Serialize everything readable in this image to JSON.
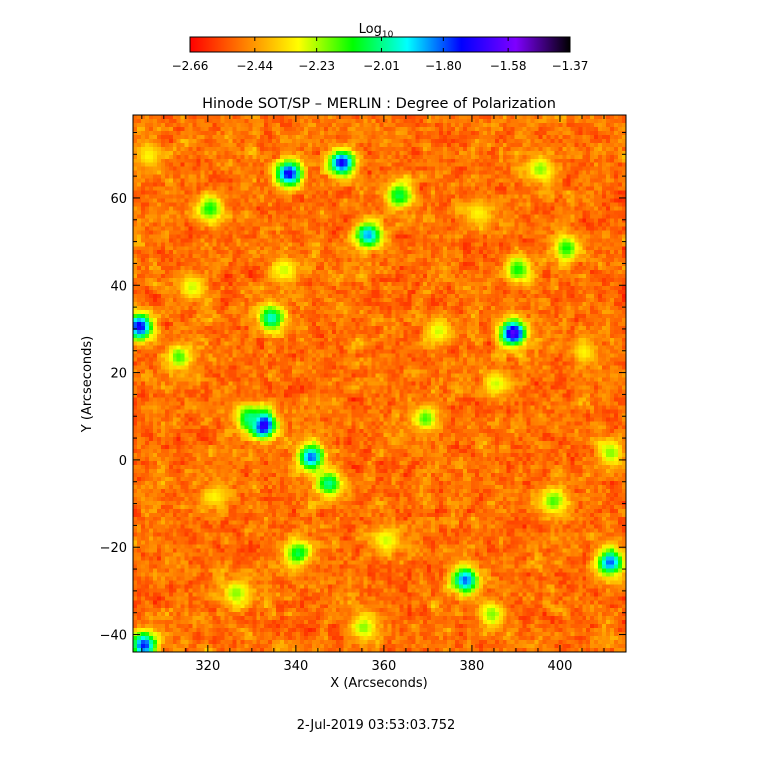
{
  "chart_data": {
    "type": "heatmap",
    "title": "Hinode SOT/SP – MERLIN : Degree of Polarization",
    "xlabel": "X (Arcseconds)",
    "ylabel": "Y (Arcseconds)",
    "xlim": [
      303,
      415
    ],
    "ylim": [
      -44,
      79
    ],
    "xticks": [
      320,
      340,
      360,
      380,
      400
    ],
    "yticks": [
      -40,
      -20,
      0,
      20,
      40,
      60
    ],
    "xticklabels": [
      "320",
      "340",
      "360",
      "380",
      "400"
    ],
    "yticklabels": [
      "−40",
      "−20",
      "0",
      "20",
      "40",
      "60"
    ],
    "colorbar": {
      "label": "Log",
      "label_sub": "10",
      "range": [
        -2.66,
        -1.37
      ],
      "ticks": [
        -2.66,
        -2.44,
        -2.23,
        -2.01,
        -1.8,
        -1.58,
        -1.37
      ],
      "ticklabels": [
        "−2.66",
        "−2.44",
        "−2.23",
        "−2.01",
        "−1.80",
        "−1.58",
        "−1.37"
      ],
      "colormap": [
        "#ff0000",
        "#ff7f00",
        "#ffff00",
        "#00ff00",
        "#00ffff",
        "#0000ff",
        "#7f00ff",
        "#000000"
      ]
    },
    "background_level": -2.5,
    "features": [
      {
        "x": 332,
        "y": 8.5,
        "value": -1.55
      },
      {
        "x": 389,
        "y": 29.5,
        "value": -1.6
      },
      {
        "x": 350,
        "y": 68.5,
        "value": -1.7
      },
      {
        "x": 338,
        "y": 66,
        "value": -1.7
      },
      {
        "x": 304,
        "y": 31,
        "value": -1.7
      },
      {
        "x": 343,
        "y": 1,
        "value": -1.8
      },
      {
        "x": 378,
        "y": -27,
        "value": -1.8
      },
      {
        "x": 356,
        "y": 52,
        "value": -1.85
      },
      {
        "x": 305,
        "y": -42,
        "value": -1.75
      },
      {
        "x": 411,
        "y": -23,
        "value": -1.8
      },
      {
        "x": 334,
        "y": 33,
        "value": -1.95
      },
      {
        "x": 329,
        "y": 10,
        "value": -2.0
      },
      {
        "x": 363,
        "y": 61,
        "value": -2.05
      },
      {
        "x": 340,
        "y": -21,
        "value": -2.05
      },
      {
        "x": 347,
        "y": -5,
        "value": -2.0
      },
      {
        "x": 390,
        "y": 44,
        "value": -2.1
      },
      {
        "x": 320,
        "y": 58,
        "value": -2.1
      },
      {
        "x": 401,
        "y": 49,
        "value": -2.1
      },
      {
        "x": 313,
        "y": 24,
        "value": -2.15
      },
      {
        "x": 398,
        "y": -9,
        "value": -2.15
      },
      {
        "x": 369,
        "y": 10,
        "value": -2.15
      },
      {
        "x": 326,
        "y": -30,
        "value": -2.2
      },
      {
        "x": 355,
        "y": -38,
        "value": -2.2
      },
      {
        "x": 384,
        "y": -35,
        "value": -2.2
      },
      {
        "x": 395,
        "y": 67,
        "value": -2.2
      },
      {
        "x": 411,
        "y": 2,
        "value": -2.2
      },
      {
        "x": 316,
        "y": 40,
        "value": -2.25
      },
      {
        "x": 372,
        "y": 30,
        "value": -2.25
      },
      {
        "x": 385,
        "y": 18,
        "value": -2.25
      },
      {
        "x": 337,
        "y": 44,
        "value": -2.25
      },
      {
        "x": 360,
        "y": -18,
        "value": -2.25
      },
      {
        "x": 306,
        "y": 70,
        "value": -2.3
      },
      {
        "x": 405,
        "y": 25,
        "value": -2.3
      },
      {
        "x": 321,
        "y": -8,
        "value": -2.3
      },
      {
        "x": 381,
        "y": 57,
        "value": -2.3
      }
    ]
  },
  "timestamp": "2-Jul-2019 03:53:03.752"
}
